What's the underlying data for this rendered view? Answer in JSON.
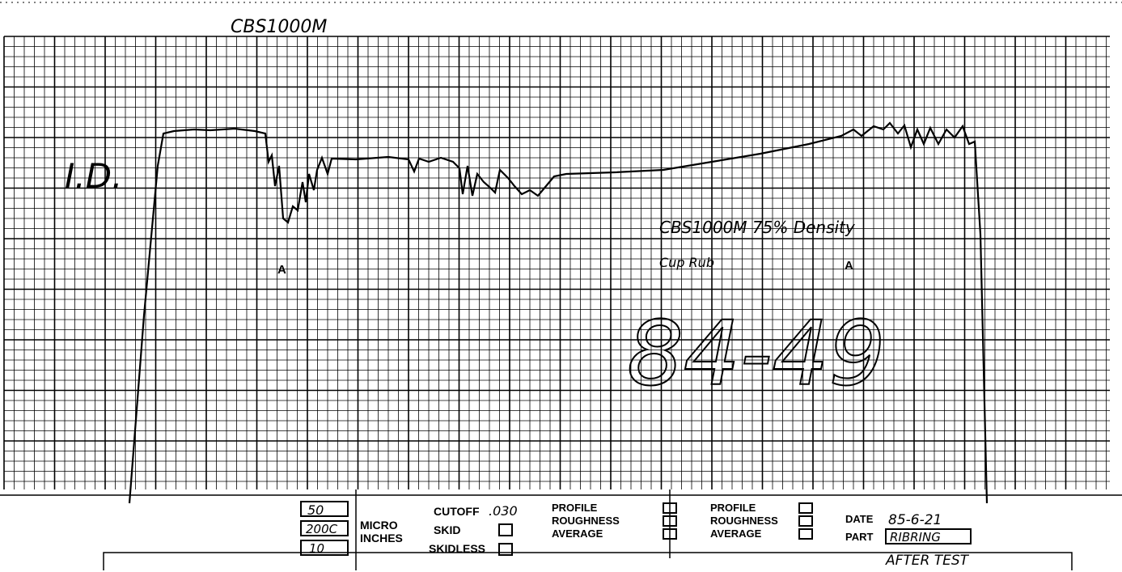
{
  "header": {
    "title": "CBS1000M"
  },
  "annotations": {
    "id_label": "I.D.",
    "marker_left": "A",
    "marker_right": "A",
    "note": "CBS1000M 75% Density",
    "note2": "Cup Rub",
    "sample_number": "84-49"
  },
  "footer": {
    "scale_values": [
      "50",
      "200C",
      "10"
    ],
    "units": [
      "MICRO",
      "INCHES"
    ],
    "cutoff_label": "CUTOFF",
    "cutoff_value": ".030",
    "skid": "SKID",
    "skidless": "SKIDLESS",
    "group1": [
      "PROFILE",
      "ROUGHNESS",
      "AVERAGE"
    ],
    "group2": [
      "PROFILE",
      "ROUGHNESS",
      "AVERAGE"
    ],
    "date_label": "DATE",
    "date": "85-6-21",
    "part_label": "PART",
    "part": "RIBRING",
    "remark": "AFTER TEST"
  }
}
